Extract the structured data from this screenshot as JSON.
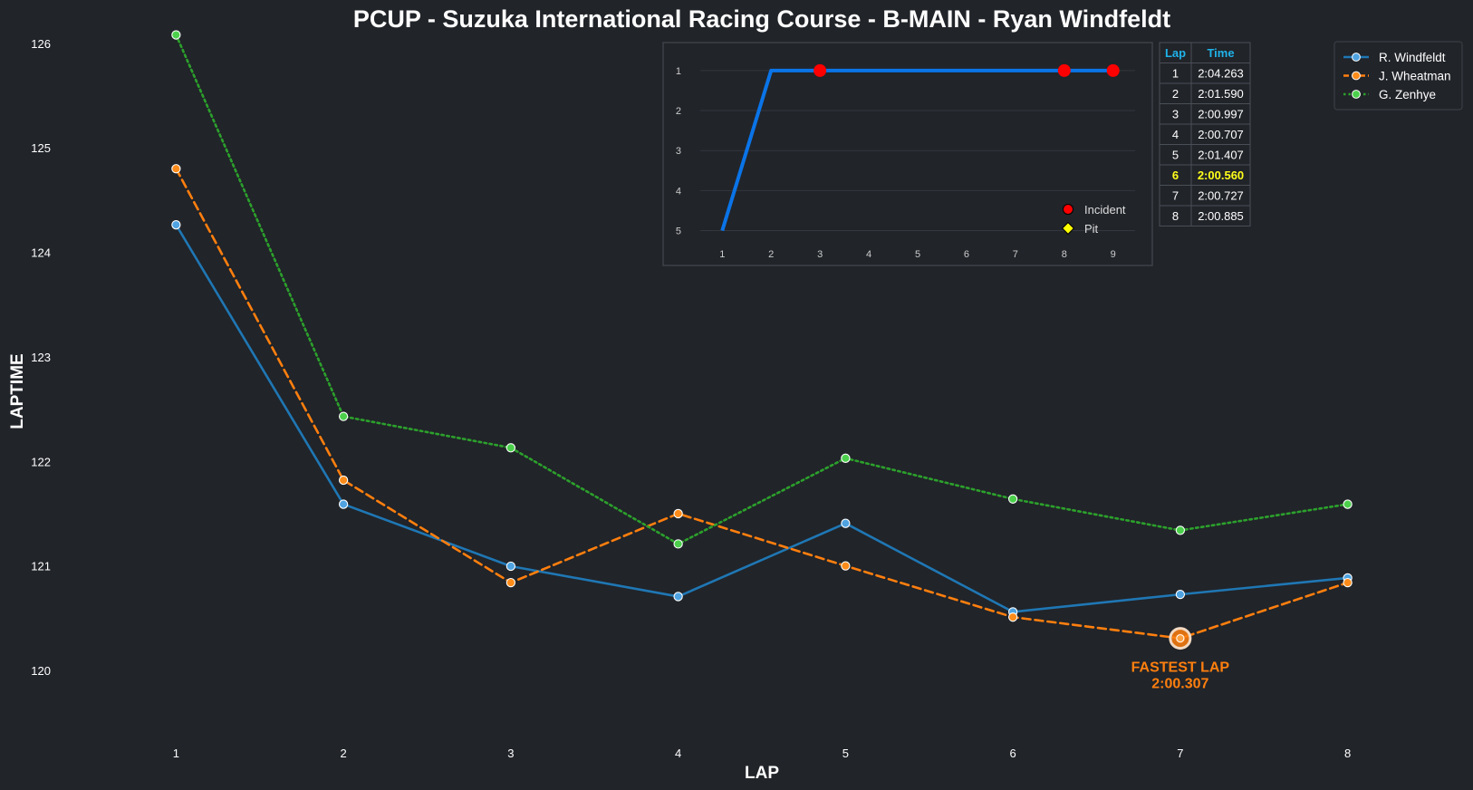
{
  "chart_data": {
    "type": "line",
    "title": "PCUP - Suzuka International Racing Course - B-MAIN - Ryan Windfeldt",
    "xlabel": "LAP",
    "ylabel": "LAPTIME",
    "x": [
      1,
      2,
      3,
      4,
      5,
      6,
      7,
      8
    ],
    "xlim": [
      0.5,
      8.5
    ],
    "ylim": [
      119.35,
      126.05
    ],
    "yticks": [
      120,
      121,
      122,
      123,
      124,
      125,
      126
    ],
    "grid": false,
    "legend_position": "top-right",
    "series": [
      {
        "name": "R. Windfeldt",
        "color": "#1f77b4",
        "marker_color": "#4fa3e0",
        "line_style": "solid",
        "values": [
          124.263,
          121.59,
          120.997,
          120.707,
          121.407,
          120.56,
          120.727,
          120.885
        ]
      },
      {
        "name": "J. Wheatman",
        "color": "#ff7f0e",
        "marker_color": "#ff8c1a",
        "line_style": "dashed",
        "values": [
          124.8,
          121.82,
          120.84,
          121.5,
          121.0,
          120.51,
          120.307,
          120.84
        ]
      },
      {
        "name": "G. Zenhye",
        "color": "#2ca02c",
        "marker_color": "#4cd04c",
        "line_style": "dotted",
        "values": [
          126.08,
          122.43,
          122.13,
          121.21,
          122.03,
          121.64,
          121.34,
          121.59
        ]
      }
    ],
    "annotation": {
      "label_line1": "FASTEST LAP",
      "label_line2": "2:00.307",
      "x": 7,
      "y": 120.307,
      "color": "#ff7f0e"
    },
    "inset_position_chart": {
      "type": "line",
      "x": [
        1,
        2,
        3,
        4,
        5,
        6,
        7,
        8,
        9
      ],
      "positions": [
        5,
        1,
        1,
        1,
        1,
        1,
        1,
        1,
        1
      ],
      "yticks": [
        1,
        2,
        3,
        4,
        5
      ],
      "ylim": [
        5.35,
        0.55
      ],
      "xlim": [
        0.55,
        9.45
      ],
      "line_color": "#0a74e8",
      "incidents": [
        3,
        8,
        9
      ],
      "incident_color": "#ff0000",
      "pits": [],
      "pit_color": "#ffff00",
      "legend": {
        "incident_label": "Incident",
        "pit_label": "Pit"
      }
    },
    "lap_table": {
      "headers": [
        "Lap",
        "Time"
      ],
      "header_color": "#1fb3ea",
      "fastest_color": "#ffff1a",
      "fastest_lap": 6,
      "rows": [
        {
          "lap": "1",
          "time": "2:04.263"
        },
        {
          "lap": "2",
          "time": "2:01.590"
        },
        {
          "lap": "3",
          "time": "2:00.997"
        },
        {
          "lap": "4",
          "time": "2:00.707"
        },
        {
          "lap": "5",
          "time": "2:01.407"
        },
        {
          "lap": "6",
          "time": "2:00.560"
        },
        {
          "lap": "7",
          "time": "2:00.727"
        },
        {
          "lap": "8",
          "time": "2:00.885"
        }
      ]
    }
  },
  "colors": {
    "background": "#212429",
    "text": "#ffffff",
    "inset_background": "#212429",
    "inset_border": "#3e4249",
    "table_border": "#4a4e56"
  }
}
